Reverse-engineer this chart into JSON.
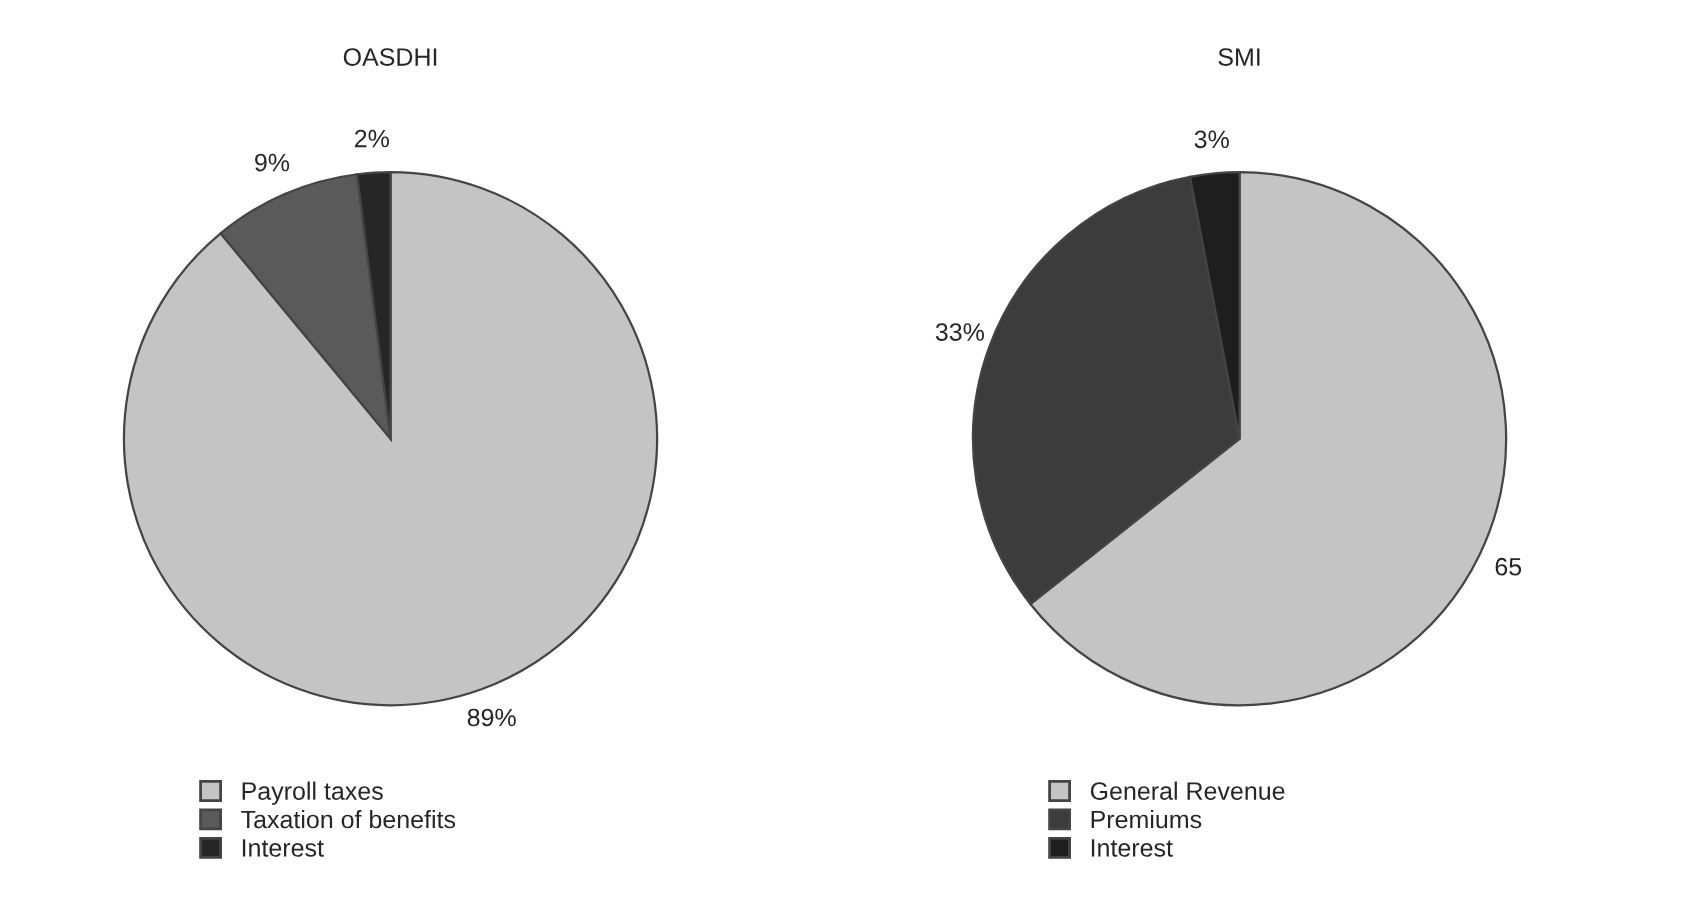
{
  "chart_data": [
    {
      "type": "pie",
      "title": "OASDHI",
      "categories": [
        "Payroll taxes",
        "Taxation of benefits",
        "Interest"
      ],
      "values": [
        89,
        9,
        2
      ],
      "value_labels": [
        "89%",
        "9%",
        "2%"
      ],
      "colors": [
        "#c4c4c4",
        "#5a5a5a",
        "#262626"
      ],
      "legend": "bottom left"
    },
    {
      "type": "pie",
      "title": "SMI",
      "categories": [
        "General Revenue",
        "Premiums",
        "Interest"
      ],
      "values": [
        65,
        33,
        3
      ],
      "value_labels": [
        "65",
        "33%",
        "3%"
      ],
      "colors": [
        "#c4c4c4",
        "#3c3c3c",
        "#1e1e1e"
      ],
      "legend": "bottom left"
    }
  ]
}
